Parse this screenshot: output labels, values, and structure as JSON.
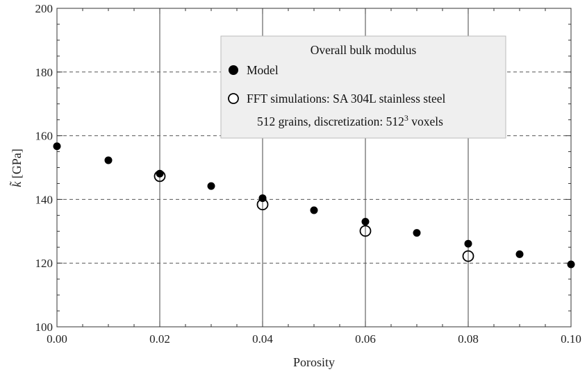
{
  "chart_data": {
    "type": "scatter",
    "xlabel": "Porosity",
    "ylabel_main": "k̃",
    "ylabel_unit": " [GPa]",
    "xlim": [
      0,
      0.1
    ],
    "ylim": [
      100,
      200
    ],
    "x_ticks": [
      0,
      0.02,
      0.04,
      0.06,
      0.08,
      0.1
    ],
    "x_tick_labels": [
      "0.00",
      "0.02",
      "0.04",
      "0.06",
      "0.08",
      "0.10"
    ],
    "y_ticks": [
      100,
      120,
      140,
      160,
      180,
      200
    ],
    "y_tick_labels": [
      "100",
      "120",
      "140",
      "160",
      "180",
      "200"
    ],
    "vertical_grid": [
      0.02,
      0.04,
      0.06,
      0.08
    ],
    "horizontal_grid_dashed": [
      120,
      140,
      160,
      180
    ],
    "legend": {
      "title": "Overall bulk modulus",
      "placement": "top-center",
      "note_prefix": "512 grains, discretization: 512",
      "note_sup": "3",
      "note_suffix": " voxels"
    },
    "series": [
      {
        "name": "Model",
        "marker": "filled-circle",
        "x": [
          0,
          0.01,
          0.02,
          0.03,
          0.04,
          0.05,
          0.06,
          0.07,
          0.08,
          0.09,
          0.1
        ],
        "y": [
          156.7,
          152.3,
          148.1,
          144.2,
          140.4,
          136.6,
          133.0,
          129.5,
          126.1,
          122.8,
          119.6
        ]
      },
      {
        "name": "FFT simulations: SA 304L stainless steel",
        "marker": "open-circle",
        "x": [
          0.02,
          0.04,
          0.06,
          0.08
        ],
        "y": [
          147.3,
          138.4,
          130.1,
          122.2
        ]
      }
    ]
  }
}
